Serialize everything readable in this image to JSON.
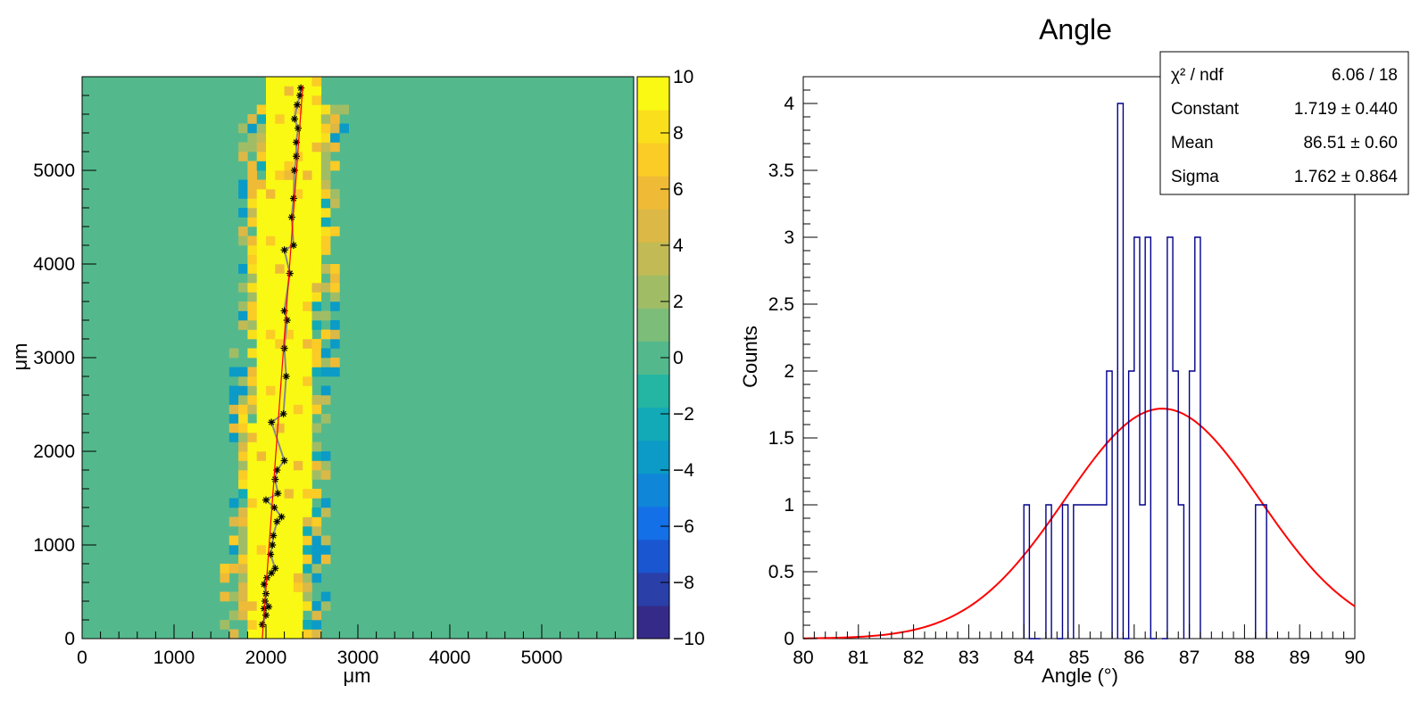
{
  "chart_data": [
    {
      "type": "heatmap",
      "xlabel": "μm",
      "ylabel": "μm",
      "xlim": [
        0,
        6000
      ],
      "ylim": [
        0,
        6000
      ],
      "x_ticks": [
        "0",
        "1000",
        "2000",
        "3000",
        "4000",
        "5000"
      ],
      "y_ticks": [
        "0",
        "1000",
        "2000",
        "3000",
        "4000",
        "5000"
      ],
      "colorbar": {
        "range": [
          -10,
          10
        ],
        "ticks": [
          "10",
          "8",
          "6",
          "4",
          "2",
          "0",
          "−2",
          "−4",
          "−6",
          "−8",
          "−10"
        ]
      },
      "background_value": 0,
      "band": {
        "description_values": "high-count band of pixels around a straight track",
        "x_at_y0": 2080,
        "x_at_y6000": 2320,
        "peak_value": 10
      },
      "track_points": [
        [
          1960,
          150
        ],
        [
          2000,
          250
        ],
        [
          1980,
          320
        ],
        [
          2030,
          340
        ],
        [
          1990,
          400
        ],
        [
          2000,
          480
        ],
        [
          1980,
          580
        ],
        [
          2010,
          650
        ],
        [
          2060,
          700
        ],
        [
          2100,
          750
        ],
        [
          2050,
          900
        ],
        [
          2070,
          1000
        ],
        [
          2080,
          1100
        ],
        [
          2120,
          1250
        ],
        [
          2170,
          1300
        ],
        [
          2090,
          1400
        ],
        [
          2000,
          1480
        ],
        [
          2130,
          1550
        ],
        [
          2100,
          1700
        ],
        [
          2120,
          1800
        ],
        [
          2200,
          1900
        ],
        [
          2060,
          2310
        ],
        [
          2190,
          2400
        ],
        [
          2220,
          2800
        ],
        [
          2200,
          3100
        ],
        [
          2230,
          3400
        ],
        [
          2200,
          3500
        ],
        [
          2260,
          3900
        ],
        [
          2200,
          4150
        ],
        [
          2300,
          4200
        ],
        [
          2280,
          4500
        ],
        [
          2300,
          4700
        ],
        [
          2310,
          5000
        ],
        [
          2330,
          5150
        ],
        [
          2330,
          5300
        ],
        [
          2350,
          5450
        ],
        [
          2310,
          5550
        ],
        [
          2340,
          5700
        ],
        [
          2370,
          5800
        ],
        [
          2380,
          5880
        ]
      ],
      "fit_line": [
        [
          1960,
          0
        ],
        [
          2400,
          5900
        ]
      ],
      "colors": {
        "background": "#53b98d",
        "track_fit": "#ff0000"
      }
    },
    {
      "type": "bar",
      "title": "Angle",
      "xlabel": "Angle (°)",
      "ylabel": "Counts",
      "xlim": [
        80,
        90
      ],
      "ylim": [
        0,
        4.2
      ],
      "x_ticks": [
        "80",
        "81",
        "82",
        "83",
        "84",
        "85",
        "86",
        "87",
        "88",
        "89",
        "90"
      ],
      "y_ticks": [
        "0",
        "0.5",
        "1",
        "1.5",
        "2",
        "2.5",
        "3",
        "3.5",
        "4"
      ],
      "bin_width": 0.1,
      "bins": [
        {
          "x": 84.0,
          "count": 1
        },
        {
          "x": 84.1,
          "count": 0
        },
        {
          "x": 84.2,
          "count": 0
        },
        {
          "x": 84.4,
          "count": 1
        },
        {
          "x": 84.6,
          "count": 0
        },
        {
          "x": 84.7,
          "count": 1
        },
        {
          "x": 84.9,
          "count": 1
        },
        {
          "x": 85.0,
          "count": 1
        },
        {
          "x": 85.1,
          "count": 1
        },
        {
          "x": 85.2,
          "count": 1
        },
        {
          "x": 85.3,
          "count": 1
        },
        {
          "x": 85.4,
          "count": 1
        },
        {
          "x": 85.5,
          "count": 2
        },
        {
          "x": 85.7,
          "count": 4
        },
        {
          "x": 85.8,
          "count": 0
        },
        {
          "x": 85.9,
          "count": 2
        },
        {
          "x": 86.0,
          "count": 3
        },
        {
          "x": 86.1,
          "count": 1
        },
        {
          "x": 86.2,
          "count": 3
        },
        {
          "x": 86.3,
          "count": 0
        },
        {
          "x": 86.5,
          "count": 0
        },
        {
          "x": 86.6,
          "count": 3
        },
        {
          "x": 86.7,
          "count": 2
        },
        {
          "x": 86.8,
          "count": 1
        },
        {
          "x": 87.0,
          "count": 2
        },
        {
          "x": 87.1,
          "count": 3
        },
        {
          "x": 88.2,
          "count": 1
        },
        {
          "x": 88.3,
          "count": 1
        }
      ],
      "fit": {
        "function": "gaus",
        "constant": 1.719,
        "mean": 86.51,
        "sigma": 1.762
      },
      "stats_box": {
        "rows": [
          {
            "label": "χ² / ndf",
            "value": "6.06 / 18"
          },
          {
            "label": "Constant",
            "value": "1.719 ± 0.440"
          },
          {
            "label": "Mean",
            "value": "86.51 ± 0.60"
          },
          {
            "label": "Sigma",
            "value": "1.762 ± 0.864"
          }
        ],
        "placement": "top-right"
      },
      "colors": {
        "histogram": "#00008b",
        "fit": "#ff0000"
      }
    }
  ]
}
